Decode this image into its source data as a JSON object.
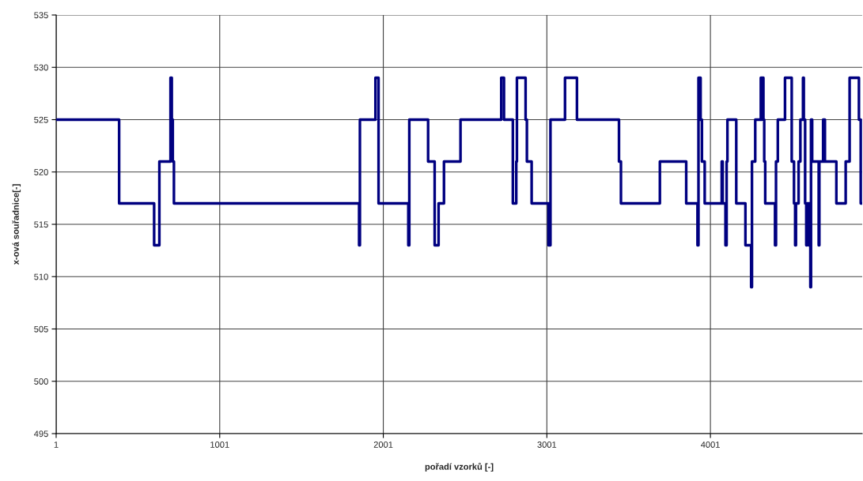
{
  "chart_data": {
    "type": "step",
    "xlabel": "pořadí vzorků [-]",
    "ylabel": "x-ová souřadnice[-]",
    "series": [
      {
        "color": "#000080",
        "x": [
          1,
          386,
          600,
          632,
          700,
          708,
          714,
          721,
          1853,
          1858,
          1953,
          1972,
          2154,
          2160,
          2275,
          2315,
          2339,
          2372,
          2473,
          2722,
          2739,
          2793,
          2814,
          2818,
          2871,
          2879,
          2908,
          3011,
          3023,
          3112,
          3185,
          3442,
          3454,
          3692,
          3853,
          3922,
          3928,
          3933,
          3936,
          3941,
          3949,
          3966,
          4070,
          4076,
          4093,
          4100,
          4105,
          4159,
          4215,
          4250,
          4255,
          4275,
          4309,
          4313,
          4317,
          4325,
          4330,
          4336,
          4396,
          4402,
          4413,
          4457,
          4498,
          4512,
          4519,
          4524,
          4540,
          4551,
          4567,
          4572,
          4580,
          4587,
          4592,
          4602,
          4606,
          4612,
          4616,
          4623,
          4663,
          4667,
          4690,
          4694,
          4697,
          4701,
          4771,
          4828,
          4852,
          4909,
          4920,
          4929
        ],
        "values": [
          525,
          517,
          513,
          521,
          529,
          525,
          521,
          517,
          513,
          525,
          529,
          517,
          513,
          525,
          521,
          513,
          517,
          521,
          525,
          529,
          525,
          517,
          521,
          529,
          525,
          521,
          517,
          513,
          525,
          529,
          525,
          521,
          517,
          521,
          517,
          513,
          529,
          525,
          529,
          525,
          521,
          517,
          521,
          517,
          513,
          521,
          525,
          517,
          513,
          509,
          521,
          525,
          529,
          525,
          529,
          525,
          521,
          517,
          513,
          521,
          525,
          529,
          521,
          517,
          513,
          517,
          521,
          525,
          529,
          525,
          517,
          513,
          517,
          513,
          517,
          509,
          525,
          521,
          513,
          521,
          525,
          521,
          525,
          521,
          517,
          521,
          529,
          525,
          517,
          517
        ]
      }
    ],
    "xlim": [
      1,
      4929
    ],
    "xticks": [
      1,
      1001,
      2001,
      3001,
      4001
    ],
    "ylim": [
      495,
      535
    ],
    "yticks": [
      495,
      500,
      505,
      510,
      515,
      520,
      525,
      530,
      535
    ],
    "grid": true,
    "marker": "none",
    "line_style": "solid"
  }
}
